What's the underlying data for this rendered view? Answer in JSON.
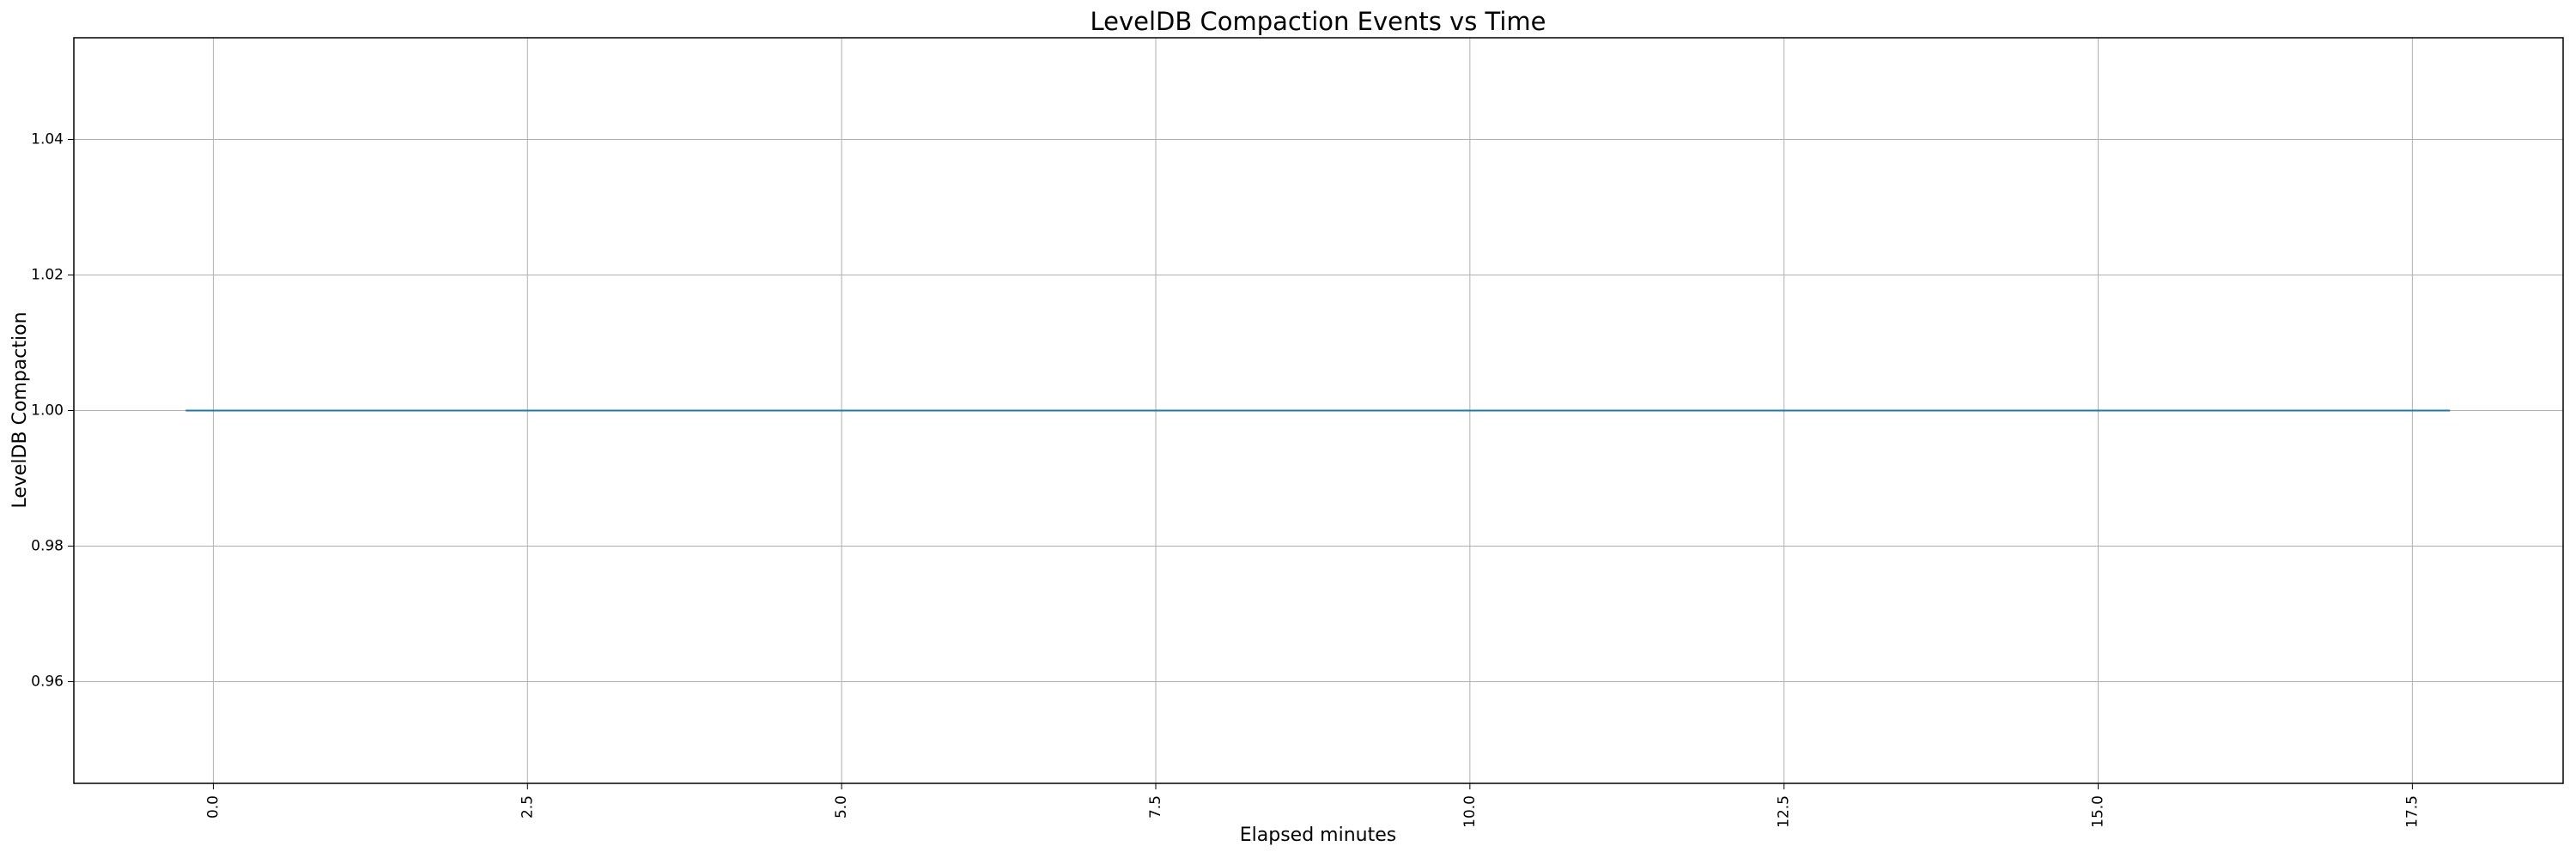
{
  "chart_data": {
    "type": "line",
    "title": "LevelDB Compaction Events vs Time",
    "xlabel": "Elapsed minutes",
    "ylabel": "LevelDB Compaction",
    "x": [
      -0.22,
      17.8
    ],
    "series": [
      {
        "name": "LevelDB Compaction",
        "color": "#1f77b4",
        "values": [
          1,
          1
        ]
      }
    ],
    "xlim": [
      -1.11,
      18.7
    ],
    "xticks": [
      {
        "value": 0,
        "label": "0.0"
      },
      2.5,
      {
        "value": 5,
        "label": "5.0"
      },
      7.5,
      {
        "value": 10,
        "label": "10.0"
      },
      12.5,
      {
        "value": 15,
        "label": "15.0"
      },
      17.5
    ],
    "ylim": [
      0.945,
      1.055
    ],
    "yticks": [
      0.96,
      0.98,
      {
        "value": 1,
        "label": "1.00"
      },
      1.02,
      1.04
    ],
    "grid": true
  }
}
